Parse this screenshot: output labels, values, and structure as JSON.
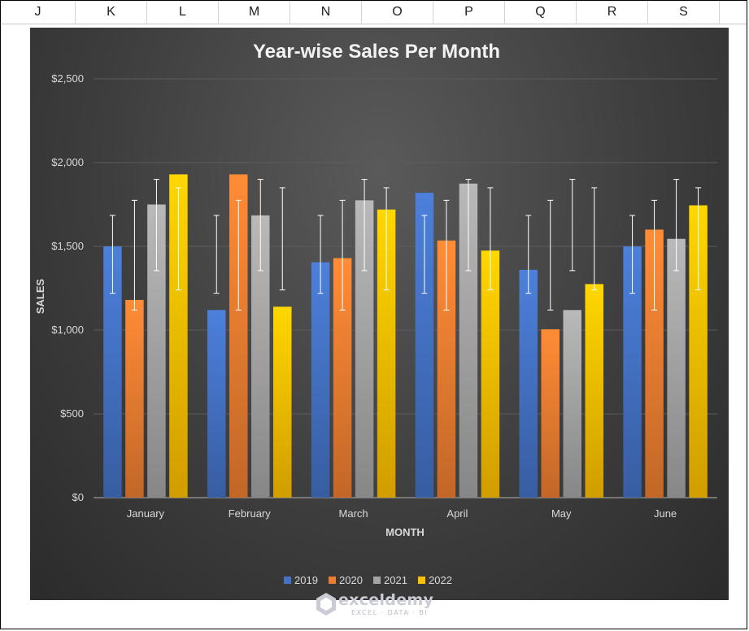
{
  "sheet": {
    "columns": [
      "J",
      "K",
      "L",
      "M",
      "N",
      "O",
      "P",
      "Q",
      "R",
      "S"
    ]
  },
  "watermark": {
    "name": "exceldemy",
    "tagline": "EXCEL · DATA · BI"
  },
  "colors": {
    "2019": "#4472c4",
    "2020": "#ed7d31",
    "2021": "#a5a5a5",
    "2022": "#ffc000",
    "grid": "#5c5c5c",
    "text": "#d9d9d9",
    "error_bar": "#ffffff"
  },
  "chart_data": {
    "type": "bar",
    "title": "Year-wise Sales Per Month",
    "xlabel": "MONTH",
    "ylabel": "SALES",
    "categories": [
      "January",
      "February",
      "March",
      "April",
      "May",
      "June"
    ],
    "ylim": [
      0,
      2500
    ],
    "yticks": [
      0,
      500,
      1000,
      1500,
      2000,
      2500
    ],
    "ytick_labels": [
      "$0",
      "$500",
      "$1,000",
      "$1,500",
      "$2,000",
      "$2,500"
    ],
    "grid": true,
    "legend_position": "bottom",
    "series": [
      {
        "name": "2019",
        "values": [
          1500,
          1120,
          1405,
          1820,
          1360,
          1500
        ],
        "error_range": [
          1220,
          1685
        ]
      },
      {
        "name": "2020",
        "values": [
          1180,
          1930,
          1430,
          1535,
          1005,
          1600
        ],
        "error_range": [
          1120,
          1775
        ]
      },
      {
        "name": "2021",
        "values": [
          1750,
          1685,
          1775,
          1875,
          1120,
          1545
        ],
        "error_range": [
          1355,
          1900
        ]
      },
      {
        "name": "2022",
        "values": [
          1930,
          1140,
          1720,
          1475,
          1275,
          1745
        ],
        "error_range": [
          1240,
          1850
        ]
      }
    ]
  }
}
